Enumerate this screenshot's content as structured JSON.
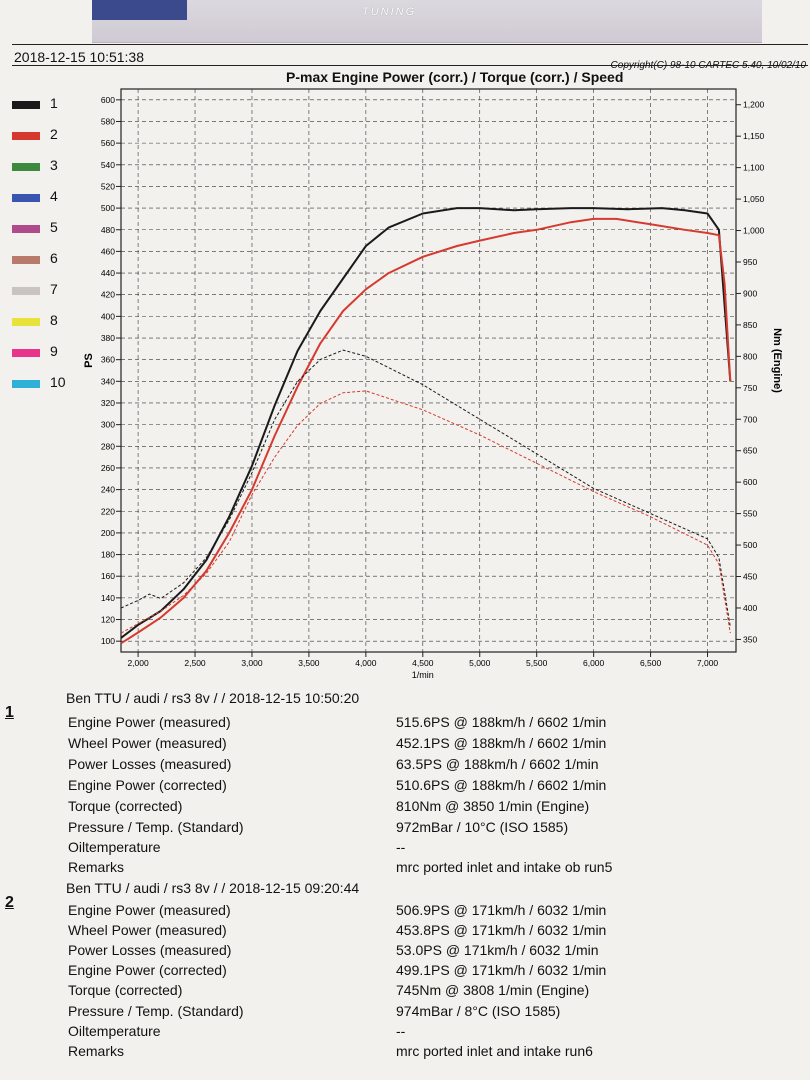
{
  "header": {
    "banner_text": "TUNING",
    "timestamp": "2018-12-15  10:51:38",
    "copyright": "Copyright(C) 98-10 CARTEC 5.40, 10/02/10",
    "title": "P-max Engine Power (corr.) / Torque (corr.) / Speed"
  },
  "legend": [
    {
      "label": "1",
      "color": "#1a1a1a"
    },
    {
      "label": "2",
      "color": "#d63a2f"
    },
    {
      "label": "3",
      "color": "#3c8a3e"
    },
    {
      "label": "4",
      "color": "#3a55b0"
    },
    {
      "label": "5",
      "color": "#b04a8c"
    },
    {
      "label": "6",
      "color": "#b87a6a"
    },
    {
      "label": "7",
      "color": "#c9c4c2"
    },
    {
      "label": "8",
      "color": "#e8e23a"
    },
    {
      "label": "9",
      "color": "#e8348a"
    },
    {
      "label": "10",
      "color": "#2fb0d6"
    }
  ],
  "chart_data": {
    "type": "line",
    "title": "P-max Engine Power (corr.) / Torque (corr.) / Speed",
    "xlabel": "1/min",
    "ylabel": "PS",
    "y2label": "Nm (Engine)",
    "xlim": [
      1850,
      7250
    ],
    "ylim": [
      90,
      610
    ],
    "y2lim": [
      330,
      1225
    ],
    "x_ticks": [
      2000,
      2500,
      3000,
      3500,
      4000,
      4500,
      5000,
      5500,
      6000,
      6500,
      7000
    ],
    "x_tick_labels": [
      "2,000",
      "2,500",
      "3,000",
      "3,500",
      "4,000",
      "4,500",
      "5,000",
      "5,500",
      "6,000",
      "6,500",
      "7,000"
    ],
    "y_ticks": [
      100,
      120,
      140,
      160,
      180,
      200,
      220,
      240,
      260,
      280,
      300,
      320,
      340,
      360,
      380,
      400,
      420,
      440,
      460,
      480,
      500,
      520,
      540,
      560,
      580,
      600
    ],
    "y2_ticks": [
      350,
      400,
      450,
      500,
      550,
      600,
      650,
      700,
      750,
      800,
      850,
      900,
      950,
      1000,
      1050,
      1100,
      1150,
      1200
    ],
    "y2_tick_labels": [
      "350",
      "400",
      "450",
      "500",
      "550",
      "600",
      "650",
      "700",
      "750",
      "800",
      "850",
      "900",
      "950",
      "1,000",
      "1,050",
      "1,100",
      "1,150",
      "1,200"
    ],
    "grid": true,
    "series": [
      {
        "name": "1",
        "kind": "power",
        "axis": "left",
        "color": "#1a1a1a",
        "dash": false,
        "x": [
          1850,
          2000,
          2200,
          2400,
          2600,
          2800,
          3000,
          3200,
          3400,
          3600,
          3800,
          4000,
          4200,
          4500,
          4800,
          5000,
          5300,
          5500,
          5800,
          6000,
          6300,
          6600,
          6800,
          7000,
          7100,
          7150,
          7200
        ],
        "y": [
          103,
          115,
          128,
          148,
          175,
          215,
          262,
          318,
          368,
          405,
          435,
          465,
          482,
          495,
          500,
          500,
          498,
          499,
          500,
          500,
          499,
          500,
          498,
          495,
          480,
          410,
          340
        ]
      },
      {
        "name": "2",
        "kind": "power",
        "axis": "left",
        "color": "#d63a2f",
        "dash": false,
        "x": [
          1850,
          2000,
          2200,
          2400,
          2600,
          2800,
          3000,
          3200,
          3400,
          3600,
          3800,
          4000,
          4200,
          4500,
          4800,
          5000,
          5300,
          5500,
          5800,
          6000,
          6200,
          6500,
          6800,
          7000,
          7100,
          7150,
          7200
        ],
        "y": [
          98,
          108,
          122,
          140,
          165,
          200,
          240,
          290,
          335,
          375,
          405,
          425,
          440,
          455,
          465,
          470,
          477,
          480,
          487,
          490,
          490,
          485,
          480,
          477,
          475,
          430,
          340
        ]
      },
      {
        "name": "1",
        "kind": "torque",
        "axis": "right",
        "color": "#1a1a1a",
        "dash": true,
        "x": [
          1850,
          2000,
          2100,
          2200,
          2400,
          2600,
          2800,
          3000,
          3200,
          3400,
          3600,
          3800,
          4000,
          4500,
          5000,
          5500,
          6000,
          6500,
          7000,
          7100,
          7200
        ],
        "y": [
          400,
          412,
          422,
          415,
          440,
          480,
          540,
          615,
          700,
          760,
          795,
          810,
          800,
          755,
          700,
          645,
          590,
          550,
          510,
          480,
          370
        ]
      },
      {
        "name": "2",
        "kind": "torque",
        "axis": "right",
        "color": "#d63a2f",
        "dash": true,
        "x": [
          1850,
          2000,
          2200,
          2400,
          2600,
          2800,
          3000,
          3200,
          3400,
          3600,
          3800,
          4000,
          4500,
          5000,
          5500,
          6000,
          6500,
          7000,
          7100,
          7200
        ],
        "y": [
          360,
          375,
          395,
          420,
          455,
          505,
          580,
          640,
          690,
          725,
          742,
          745,
          715,
          675,
          630,
          585,
          545,
          500,
          470,
          360
        ]
      }
    ]
  },
  "runs": [
    {
      "number": "1",
      "title": "Ben TTU / audi / rs3 8v /  / 2018-12-15 10:50:20",
      "rows": [
        {
          "label": "Engine Power (measured)",
          "value": "515.6PS @ 188km/h / 6602 1/min"
        },
        {
          "label": "Wheel Power (measured)",
          "value": "452.1PS @ 188km/h / 6602 1/min"
        },
        {
          "label": "Power Losses (measured)",
          "value": "63.5PS @ 188km/h / 6602 1/min"
        },
        {
          "label": "Engine Power (corrected)",
          "value": "510.6PS @ 188km/h / 6602 1/min"
        },
        {
          "label": "Torque (corrected)",
          "value": "810Nm @ 3850 1/min (Engine)"
        },
        {
          "label": "Pressure / Temp. (Standard)",
          "value": "972mBar / 10°C   (ISO 1585)"
        },
        {
          "label": "Oiltemperature",
          "value": "--"
        },
        {
          "label": "Remarks",
          "value": "mrc ported inlet and intake ob run5"
        }
      ]
    },
    {
      "number": "2",
      "title": "Ben TTU / audi / rs3 8v /  / 2018-12-15 09:20:44",
      "rows": [
        {
          "label": "Engine Power (measured)",
          "value": "506.9PS @ 171km/h / 6032 1/min"
        },
        {
          "label": "Wheel Power (measured)",
          "value": "453.8PS @ 171km/h / 6032 1/min"
        },
        {
          "label": "Power Losses (measured)",
          "value": "53.0PS @ 171km/h / 6032 1/min"
        },
        {
          "label": "Engine Power (corrected)",
          "value": "499.1PS @ 171km/h / 6032 1/min"
        },
        {
          "label": "Torque (corrected)",
          "value": "745Nm @ 3808 1/min (Engine)"
        },
        {
          "label": "Pressure / Temp. (Standard)",
          "value": "974mBar / 8°C   (ISO 1585)"
        },
        {
          "label": "Oiltemperature",
          "value": "--"
        },
        {
          "label": "Remarks",
          "value": "mrc ported inlet and intake run6"
        }
      ]
    }
  ]
}
